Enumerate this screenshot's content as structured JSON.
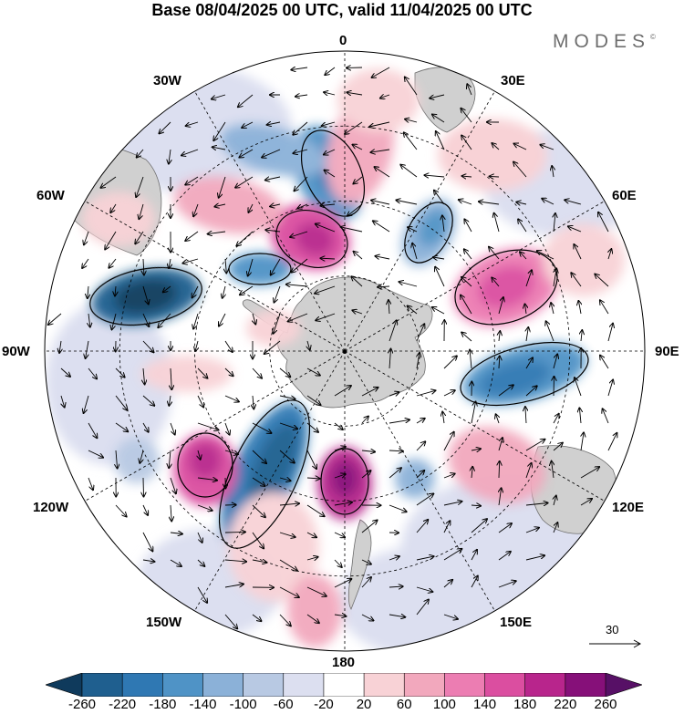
{
  "title": "Base 08/04/2025 00 UTC, valid 11/04/2025 00 UTC",
  "brand": "MODES",
  "brand_mark": "©",
  "longitude_labels": [
    "0",
    "30E",
    "60E",
    "90E",
    "120E",
    "150E",
    "180",
    "150W",
    "120W",
    "90W",
    "60W",
    "30W"
  ],
  "reference_vector": {
    "value": "30"
  },
  "colorbar": {
    "labels": [
      "-260",
      "-220",
      "-180",
      "-140",
      "-100",
      "-60",
      "-20",
      "20",
      "60",
      "100",
      "140",
      "180",
      "220",
      "260"
    ],
    "colors": [
      "#0f3a5c",
      "#1f5f8f",
      "#2f78b3",
      "#4f93c6",
      "#8bb1d8",
      "#b8c9e3",
      "#dcdff0",
      "#ffffff",
      "#f8d2d6",
      "#f2a8bd",
      "#ec7db2",
      "#db4ea0",
      "#b8258c",
      "#861079",
      "#571066"
    ]
  },
  "colors": {
    "land": "#d0d0d0",
    "coast": "#6e6e6e",
    "grid": "#000000"
  }
}
